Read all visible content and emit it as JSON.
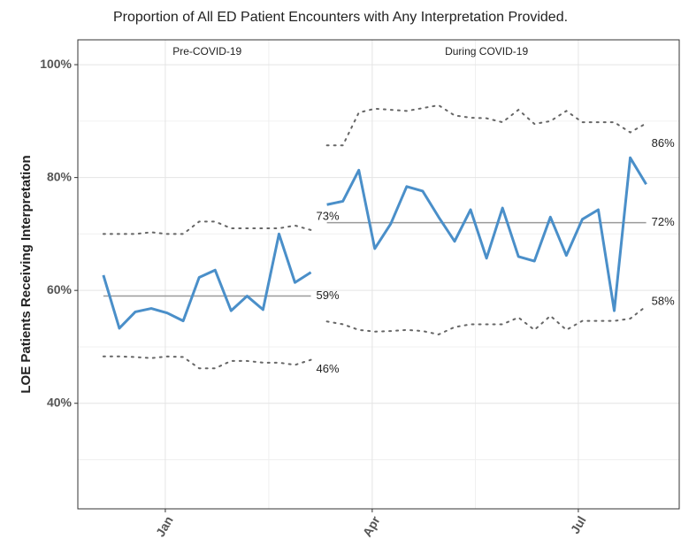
{
  "chart_data": {
    "type": "control",
    "title": "Proportion of All ED Patient Encounters with Any Interpretation Provided.",
    "ylabel": "LOE Patients Receiving Interpretation",
    "xlim": [
      -1.6,
      36.07
    ],
    "ylim": [
      21.3,
      104.4
    ],
    "xticks": [
      {
        "value": 3.88,
        "label": "Jan"
      },
      {
        "value": 16.84,
        "label": "Apr"
      },
      {
        "value": 29.75,
        "label": "Jul"
      }
    ],
    "xminor": [
      10.36,
      23.3
    ],
    "yticks": [
      {
        "value": 40,
        "label": "40%"
      },
      {
        "value": 60,
        "label": "60%"
      },
      {
        "value": 80,
        "label": "80%"
      },
      {
        "value": 100,
        "label": "100%"
      }
    ],
    "yminor": [
      30,
      50,
      70,
      90
    ],
    "grid": true,
    "color": "#4a8fc9",
    "limit_color": "#666666",
    "center_color": "#9a9a9a",
    "phases": [
      {
        "name": "Pre-COVID-19",
        "x": [
          0,
          1,
          2,
          3,
          4,
          5,
          6,
          7,
          8,
          9,
          10,
          11,
          12,
          13
        ],
        "values": [
          62.7,
          53.3,
          56.2,
          56.8,
          56,
          54.6,
          62.3,
          63.6,
          56.4,
          59,
          56.6,
          70,
          61.4,
          63.2
        ],
        "ucl": [
          70,
          70,
          70,
          70.3,
          70,
          70,
          72.2,
          72.2,
          71,
          71,
          71,
          71,
          71.5,
          70.7
        ],
        "lcl": [
          48.3,
          48.3,
          48.2,
          48,
          48.3,
          48.2,
          46.2,
          46.2,
          47.5,
          47.5,
          47.2,
          47.2,
          46.8,
          47.7
        ],
        "center": 59,
        "labels": [
          {
            "value": 73,
            "label": "73%"
          },
          {
            "value": 59,
            "label": "59%"
          },
          {
            "value": 46,
            "label": "46%"
          }
        ]
      },
      {
        "name": "During COVID-19",
        "x": [
          14,
          15,
          16,
          17,
          18,
          19,
          20,
          21,
          22,
          23,
          24,
          25,
          26,
          27,
          28,
          29,
          30,
          31,
          32,
          33,
          34
        ],
        "values": [
          75.2,
          75.8,
          81.3,
          67.4,
          71.8,
          78.4,
          77.6,
          73,
          68.7,
          74.3,
          65.7,
          74.6,
          66,
          65.2,
          73,
          66.2,
          72.6,
          74.3,
          56.4,
          83.5,
          78.8
        ],
        "ucl": [
          85.7,
          85.7,
          91.5,
          92.2,
          92,
          91.8,
          92.3,
          92.8,
          91,
          90.6,
          90.5,
          89.8,
          92,
          89.5,
          90,
          91.8,
          89.8,
          89.8,
          89.8,
          88,
          89.6
        ],
        "lcl": [
          54.5,
          54,
          53,
          52.7,
          52.8,
          53,
          52.8,
          52.2,
          53.5,
          54,
          54,
          54,
          55.2,
          53,
          55.5,
          53,
          54.6,
          54.6,
          54.6,
          55,
          57.2
        ],
        "center": 72,
        "labels": [
          {
            "value": 86,
            "label": "86%"
          },
          {
            "value": 72,
            "label": "72%"
          },
          {
            "value": 58,
            "label": "58%"
          }
        ]
      }
    ]
  }
}
